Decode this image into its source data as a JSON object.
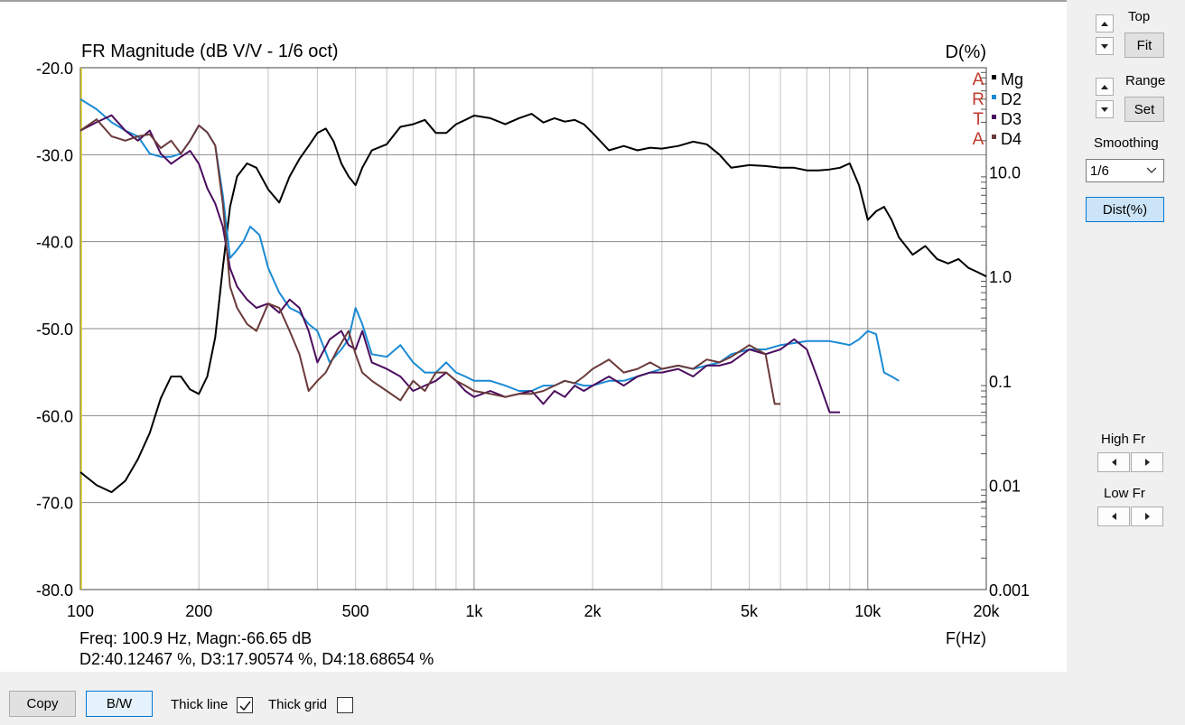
{
  "chart_data": {
    "type": "line",
    "title": "FR Magnitude (dB V/V - 1/6 oct)",
    "right_axis_label": "D(%)",
    "xlabel": "F(Hz)",
    "x_scale": "log",
    "xlim": [
      100,
      20000
    ],
    "ylim": [
      -80,
      -20
    ],
    "y2_scale": "log",
    "y2lim": [
      0.001,
      100
    ],
    "grid": true,
    "legend_position": "top-right",
    "x_ticks": [
      {
        "value": 100,
        "label": "100"
      },
      {
        "value": 200,
        "label": "200"
      },
      {
        "value": 500,
        "label": "500"
      },
      {
        "value": 1000,
        "label": "1k"
      },
      {
        "value": 2000,
        "label": "2k"
      },
      {
        "value": 5000,
        "label": "5k"
      },
      {
        "value": 10000,
        "label": "10k"
      },
      {
        "value": 20000,
        "label": "20k"
      }
    ],
    "y_ticks": [
      {
        "value": -20,
        "label": "-20.0"
      },
      {
        "value": -30,
        "label": "-30.0"
      },
      {
        "value": -40,
        "label": "-40.0"
      },
      {
        "value": -50,
        "label": "-50.0"
      },
      {
        "value": -60,
        "label": "-60.0"
      },
      {
        "value": -70,
        "label": "-70.0"
      },
      {
        "value": -80,
        "label": "-80.0"
      }
    ],
    "y2_ticks": [
      {
        "value": 10,
        "label": "10.0"
      },
      {
        "value": 1,
        "label": "1.0"
      },
      {
        "value": 0.1,
        "label": "0.1"
      },
      {
        "value": 0.01,
        "label": "0.01"
      },
      {
        "value": 0.001,
        "label": "0.001"
      }
    ],
    "series": [
      {
        "name": "Mg",
        "color": "#000000",
        "axis": "left",
        "x": [
          100,
          110,
          120,
          130,
          140,
          150,
          160,
          170,
          180,
          190,
          200,
          210,
          220,
          230,
          240,
          250,
          265,
          280,
          300,
          320,
          340,
          360,
          380,
          400,
          420,
          440,
          460,
          480,
          500,
          520,
          550,
          600,
          650,
          700,
          750,
          800,
          850,
          900,
          950,
          1000,
          1100,
          1200,
          1300,
          1400,
          1500,
          1600,
          1700,
          1800,
          1900,
          2000,
          2100,
          2200,
          2400,
          2600,
          2800,
          3000,
          3300,
          3600,
          3900,
          4200,
          4500,
          5000,
          5500,
          6000,
          6500,
          7000,
          7500,
          8000,
          8500,
          9000,
          9500,
          10000,
          10500,
          11000,
          11500,
          12000,
          13000,
          14000,
          15000,
          16000,
          17000,
          18000,
          19000,
          20000
        ],
        "y": [
          -66.5,
          -68.0,
          -68.8,
          -67.5,
          -65.0,
          -62.0,
          -58.0,
          -55.5,
          -55.5,
          -57.0,
          -57.5,
          -55.5,
          -51.0,
          -43.0,
          -36.0,
          -32.5,
          -31.0,
          -31.5,
          -34.0,
          -35.5,
          -32.5,
          -30.5,
          -29.0,
          -27.5,
          -27.0,
          -28.5,
          -31.0,
          -32.5,
          -33.5,
          -31.5,
          -29.5,
          -28.8,
          -26.8,
          -26.5,
          -26.0,
          -27.5,
          -27.5,
          -26.5,
          -26.0,
          -25.5,
          -25.8,
          -26.5,
          -25.8,
          -25.3,
          -26.3,
          -25.8,
          -26.2,
          -26.0,
          -26.5,
          -27.5,
          -28.5,
          -29.5,
          -29.0,
          -29.5,
          -29.2,
          -29.3,
          -29.0,
          -28.5,
          -28.8,
          -30.0,
          -31.5,
          -31.2,
          -31.3,
          -31.5,
          -31.5,
          -31.8,
          -31.8,
          -31.7,
          -31.5,
          -31.0,
          -33.5,
          -37.5,
          -36.5,
          -36.0,
          -37.5,
          -39.5,
          -41.5,
          -40.5,
          -42.0,
          -42.5,
          -42.0,
          -43.0,
          -43.5,
          -44.0
        ]
      },
      {
        "name": "D2",
        "color": "#1a8ad4",
        "axis": "right",
        "x": [
          100,
          110,
          120,
          130,
          140,
          150,
          160,
          170,
          180,
          190,
          200,
          210,
          220,
          230,
          240,
          250,
          260,
          270,
          285,
          300,
          320,
          340,
          360,
          380,
          400,
          430,
          460,
          480,
          500,
          520,
          550,
          600,
          650,
          700,
          750,
          800,
          850,
          900,
          950,
          1000,
          1100,
          1200,
          1300,
          1400,
          1500,
          1600,
          1700,
          1800,
          1900,
          2000,
          2200,
          2400,
          2600,
          2800,
          3000,
          3300,
          3600,
          3900,
          4200,
          4500,
          5000,
          5500,
          6000,
          6500,
          7000,
          7500,
          8000,
          8500,
          9000,
          9500,
          10000,
          10500,
          11000,
          11500,
          12000
        ],
        "y": [
          50,
          40,
          30,
          25,
          22,
          15,
          14,
          14,
          15,
          20,
          28,
          24,
          18,
          6,
          1.5,
          1.8,
          2.2,
          3,
          2.5,
          1.2,
          0.7,
          0.5,
          0.45,
          0.35,
          0.3,
          0.15,
          0.2,
          0.25,
          0.5,
          0.35,
          0.18,
          0.17,
          0.22,
          0.15,
          0.12,
          0.12,
          0.15,
          0.12,
          0.11,
          0.1,
          0.1,
          0.09,
          0.08,
          0.08,
          0.09,
          0.09,
          0.1,
          0.095,
          0.09,
          0.09,
          0.1,
          0.1,
          0.11,
          0.12,
          0.13,
          0.14,
          0.13,
          0.14,
          0.15,
          0.18,
          0.2,
          0.2,
          0.22,
          0.23,
          0.24,
          0.24,
          0.24,
          0.23,
          0.22,
          0.25,
          0.3,
          0.28,
          0.12,
          0.11,
          0.1
        ]
      },
      {
        "name": "D3",
        "color": "#4b0d5e",
        "axis": "right",
        "x": [
          100,
          110,
          120,
          130,
          140,
          150,
          160,
          170,
          180,
          190,
          200,
          210,
          220,
          230,
          240,
          250,
          265,
          280,
          300,
          320,
          340,
          360,
          380,
          400,
          430,
          460,
          480,
          500,
          520,
          550,
          600,
          650,
          700,
          750,
          800,
          850,
          900,
          950,
          1000,
          1100,
          1200,
          1300,
          1400,
          1500,
          1600,
          1700,
          1800,
          1900,
          2000,
          2200,
          2400,
          2600,
          2800,
          3000,
          3300,
          3600,
          3900,
          4200,
          4500,
          5000,
          5500,
          6000,
          6500,
          7000,
          7500,
          8000,
          8500
        ],
        "y": [
          25,
          30,
          35,
          25,
          20,
          25,
          15,
          12,
          14,
          16,
          12,
          7,
          5,
          3,
          1.2,
          0.8,
          0.6,
          0.5,
          0.55,
          0.45,
          0.6,
          0.5,
          0.3,
          0.15,
          0.25,
          0.3,
          0.22,
          0.2,
          0.3,
          0.15,
          0.13,
          0.11,
          0.08,
          0.09,
          0.1,
          0.12,
          0.1,
          0.08,
          0.07,
          0.08,
          0.07,
          0.075,
          0.08,
          0.06,
          0.08,
          0.07,
          0.09,
          0.08,
          0.09,
          0.11,
          0.09,
          0.11,
          0.12,
          0.12,
          0.13,
          0.11,
          0.14,
          0.14,
          0.15,
          0.2,
          0.18,
          0.2,
          0.25,
          0.2,
          0.1,
          0.05,
          0.05
        ]
      },
      {
        "name": "D4",
        "color": "#6b3a3a",
        "axis": "right",
        "x": [
          100,
          110,
          120,
          130,
          140,
          150,
          160,
          170,
          180,
          190,
          200,
          210,
          220,
          230,
          240,
          250,
          265,
          280,
          300,
          320,
          340,
          360,
          380,
          400,
          420,
          450,
          480,
          500,
          520,
          550,
          600,
          650,
          700,
          750,
          800,
          850,
          900,
          950,
          1000,
          1100,
          1200,
          1300,
          1400,
          1500,
          1600,
          1700,
          1800,
          1900,
          2000,
          2200,
          2400,
          2600,
          2800,
          3000,
          3300,
          3600,
          3900,
          4200,
          4500,
          5000,
          5500,
          5800,
          6000
        ],
        "y": [
          25,
          32,
          22,
          20,
          22,
          23,
          17,
          20,
          15,
          20,
          28,
          24,
          18,
          5,
          0.8,
          0.5,
          0.35,
          0.3,
          0.55,
          0.5,
          0.3,
          0.18,
          0.08,
          0.1,
          0.12,
          0.2,
          0.3,
          0.18,
          0.12,
          0.1,
          0.08,
          0.065,
          0.1,
          0.08,
          0.12,
          0.12,
          0.1,
          0.09,
          0.08,
          0.075,
          0.07,
          0.075,
          0.075,
          0.08,
          0.09,
          0.1,
          0.095,
          0.11,
          0.13,
          0.16,
          0.12,
          0.13,
          0.15,
          0.13,
          0.14,
          0.13,
          0.16,
          0.15,
          0.17,
          0.22,
          0.18,
          0.06,
          0.06
        ]
      }
    ]
  },
  "readout": {
    "line1": "Freq: 100.9 Hz, Magn:-66.65 dB",
    "line2": "D2:40.12467 %, D3:17.90574 %, D4:18.68654 %"
  },
  "watermark": [
    "A",
    "R",
    "T",
    "A"
  ],
  "side": {
    "top_label": "Top",
    "fit_label": "Fit",
    "range_label": "Range",
    "set_label": "Set",
    "smoothing_label": "Smoothing",
    "smoothing_value": "1/6",
    "dist_label": "Dist(%)",
    "high_fr_label": "High Fr",
    "low_fr_label": "Low Fr"
  },
  "bottom": {
    "copy_label": "Copy",
    "bw_label": "B/W",
    "thick_line_label": "Thick line",
    "thick_line_checked": true,
    "thick_grid_label": "Thick grid",
    "thick_grid_checked": false
  },
  "icons": {
    "up": "up-arrow-icon",
    "down": "down-arrow-icon",
    "left": "left-arrow-icon",
    "right": "right-arrow-icon",
    "check": "checkmark-icon"
  }
}
